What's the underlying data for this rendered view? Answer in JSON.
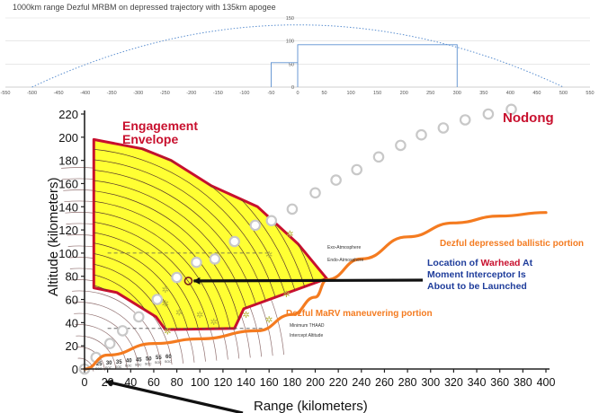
{
  "chart_data": [
    {
      "type": "line",
      "title": "1000km range Dezful MRBM on depressed trajectory with 135km apogee",
      "xlim": [
        -550,
        550
      ],
      "ylim": [
        0,
        150
      ],
      "x_ticks": [
        -550,
        -500,
        -450,
        -400,
        -350,
        -300,
        -250,
        -200,
        -150,
        -100,
        -50,
        0,
        50,
        100,
        150,
        200,
        250,
        300,
        350,
        400,
        450,
        500,
        550
      ],
      "y_ticks": [
        0,
        50,
        100,
        150
      ],
      "grid": "horizontal",
      "series": [
        {
          "style": "dotted",
          "color": "#5b8fd0",
          "x": [
            -500,
            -400,
            -300,
            -200,
            -100,
            0,
            100,
            200,
            300,
            400,
            500
          ],
          "y": [
            0,
            48.6,
            86.4,
            113.4,
            129.6,
            135,
            129.6,
            113.4,
            86.4,
            48.6,
            0
          ]
        }
      ],
      "reference_lines": [
        {
          "color": "#5b8fd0",
          "x": [
            -50,
            -50,
            0
          ],
          "y": [
            0,
            53,
            53
          ]
        },
        {
          "color": "#5b8fd0",
          "x": [
            0,
            0,
            300,
            300
          ],
          "y": [
            0,
            92,
            92,
            0
          ]
        }
      ]
    },
    {
      "type": "line",
      "xlabel": "Range (kilometers)",
      "ylabel": "Altitude (kilometers)",
      "xlim": [
        0,
        400
      ],
      "ylim": [
        0,
        220
      ],
      "x_ticks": [
        0,
        20,
        40,
        60,
        80,
        100,
        120,
        140,
        160,
        180,
        200,
        220,
        240,
        260,
        280,
        300,
        320,
        340,
        360,
        380,
        400
      ],
      "y_ticks": [
        0,
        20,
        40,
        60,
        80,
        100,
        120,
        140,
        160,
        180,
        200,
        220
      ],
      "envelope": {
        "label": "Engagement Envelope",
        "fill": "#ffff33",
        "stroke": "#c8102e",
        "x": [
          8,
          50,
          75,
          110,
          150,
          185,
          210,
          138,
          130,
          70,
          62,
          28,
          8
        ],
        "y": [
          198,
          190,
          180,
          158,
          140,
          108,
          78,
          52,
          35,
          34,
          45,
          66,
          70
        ]
      },
      "nodong": {
        "label": "Nodong",
        "color": "#c8102e",
        "x": [
          0,
          10,
          22,
          33,
          47,
          63,
          80,
          97,
          113,
          130,
          148,
          162,
          180,
          200,
          218,
          236,
          255,
          274,
          292,
          311,
          330,
          350,
          370
        ],
        "y": [
          0,
          10,
          22,
          33,
          45,
          60,
          79,
          92,
          95,
          110,
          124,
          128,
          138,
          152,
          163,
          172,
          183,
          193,
          202,
          208,
          215,
          220,
          224
        ]
      },
      "dezful": {
        "color": "#f47b20",
        "x": [
          0,
          20,
          60,
          100,
          150,
          180,
          200,
          210,
          240,
          280,
          320,
          360,
          400
        ],
        "y": [
          0,
          12,
          22,
          26,
          33,
          47,
          62,
          77,
          95,
          114,
          126,
          132,
          135
        ]
      },
      "reference_lines": [
        {
          "y": 100,
          "labels": [
            "Exo-Atmosphere",
            "Endo-Atmosphere"
          ]
        },
        {
          "y": 35,
          "labels": [
            "Minimum THAAD",
            "Intercept Altitude"
          ]
        }
      ],
      "fan_labels": [
        "25",
        "30",
        "35",
        "40",
        "45",
        "50",
        "55",
        "60"
      ],
      "fan_unit": "SOC",
      "annotations": [
        {
          "text": "Dezful depressed ballistic portion",
          "color": "#f47b20"
        },
        {
          "text": "Dezful MaRV maneuvering portion",
          "color": "#f47b20"
        },
        {
          "text_lines": [
            "Location of ",
            "Warhead",
            " At",
            "Moment Interceptor Is",
            "About to be Launched"
          ],
          "color": "#1f3d9b",
          "highlight_color": "#c8102e"
        }
      ],
      "warhead_point": {
        "x": 90,
        "y": 76
      }
    }
  ]
}
